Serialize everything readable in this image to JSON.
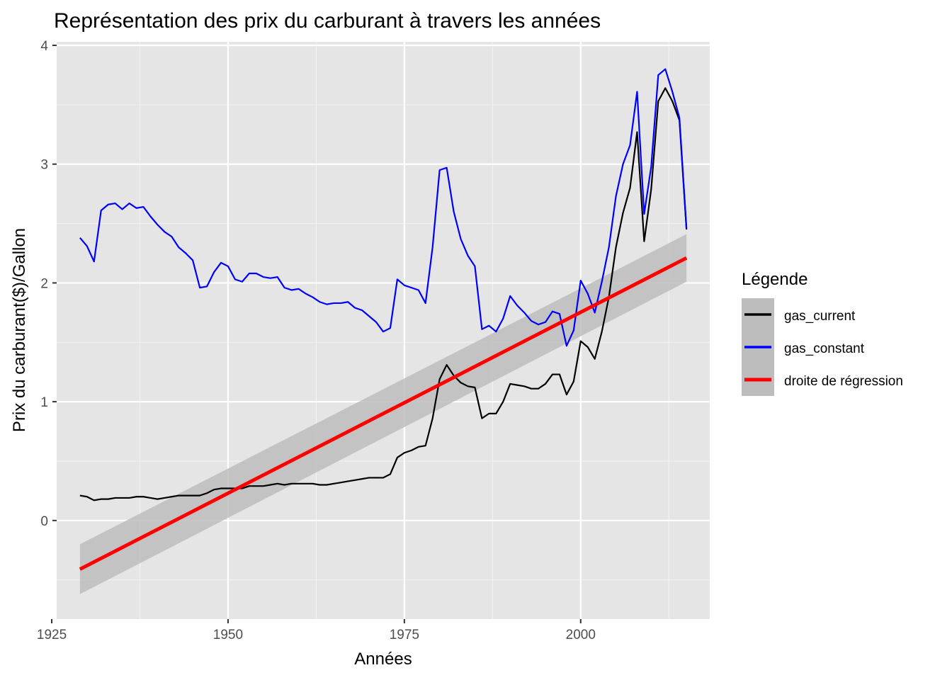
{
  "chart_data": {
    "type": "line",
    "title": "Représentation des prix du carburant à travers les années",
    "xlabel": "Années",
    "ylabel": "Prix du carburant($)/Gallon",
    "xlim": [
      1925.7,
      2018.3
    ],
    "ylim": [
      -0.83,
      4.03
    ],
    "x_ticks": [
      1925,
      1950,
      1975,
      2000
    ],
    "y_ticks": [
      0,
      1,
      2,
      3,
      4
    ],
    "grid": true,
    "legend": {
      "title": "Légende",
      "position": "right",
      "entries": [
        {
          "label": "gas_current",
          "color": "#000000"
        },
        {
          "label": "gas_constant",
          "color": "#0000ff"
        },
        {
          "label": "droite de régression",
          "color": "#ff0000"
        }
      ]
    },
    "years": [
      1929,
      1930,
      1931,
      1932,
      1933,
      1934,
      1935,
      1936,
      1937,
      1938,
      1939,
      1940,
      1941,
      1942,
      1943,
      1944,
      1945,
      1946,
      1947,
      1948,
      1949,
      1950,
      1951,
      1952,
      1953,
      1954,
      1955,
      1956,
      1957,
      1958,
      1959,
      1960,
      1961,
      1962,
      1963,
      1964,
      1965,
      1966,
      1967,
      1968,
      1969,
      1970,
      1971,
      1972,
      1973,
      1974,
      1975,
      1976,
      1977,
      1978,
      1979,
      1980,
      1981,
      1982,
      1983,
      1984,
      1985,
      1986,
      1987,
      1988,
      1989,
      1990,
      1991,
      1992,
      1993,
      1994,
      1995,
      1996,
      1997,
      1998,
      1999,
      2000,
      2001,
      2002,
      2003,
      2004,
      2005,
      2006,
      2007,
      2008,
      2009,
      2010,
      2011,
      2012,
      2013,
      2014,
      2015
    ],
    "series": [
      {
        "name": "gas_current",
        "color": "#000000",
        "values": [
          0.21,
          0.2,
          0.17,
          0.18,
          0.18,
          0.19,
          0.19,
          0.19,
          0.2,
          0.2,
          0.19,
          0.18,
          0.19,
          0.2,
          0.21,
          0.21,
          0.21,
          0.21,
          0.23,
          0.26,
          0.27,
          0.27,
          0.27,
          0.27,
          0.29,
          0.29,
          0.29,
          0.3,
          0.31,
          0.3,
          0.31,
          0.31,
          0.31,
          0.31,
          0.3,
          0.3,
          0.31,
          0.32,
          0.33,
          0.34,
          0.35,
          0.36,
          0.36,
          0.36,
          0.39,
          0.53,
          0.57,
          0.59,
          0.62,
          0.63,
          0.86,
          1.19,
          1.31,
          1.22,
          1.16,
          1.13,
          1.12,
          0.86,
          0.9,
          0.9,
          1.0,
          1.15,
          1.14,
          1.13,
          1.11,
          1.11,
          1.15,
          1.23,
          1.23,
          1.06,
          1.17,
          1.51,
          1.46,
          1.36,
          1.59,
          1.88,
          2.3,
          2.59,
          2.8,
          3.27,
          2.35,
          2.79,
          3.53,
          3.64,
          3.53,
          3.37,
          2.45
        ]
      },
      {
        "name": "gas_constant",
        "color": "#0000ff",
        "values": [
          2.38,
          2.31,
          2.18,
          2.61,
          2.66,
          2.67,
          2.62,
          2.67,
          2.63,
          2.64,
          2.56,
          2.49,
          2.43,
          2.39,
          2.3,
          2.25,
          2.19,
          1.96,
          1.97,
          2.09,
          2.17,
          2.14,
          2.03,
          2.01,
          2.08,
          2.08,
          2.05,
          2.04,
          2.05,
          1.96,
          1.94,
          1.95,
          1.91,
          1.88,
          1.84,
          1.82,
          1.83,
          1.83,
          1.84,
          1.79,
          1.77,
          1.72,
          1.67,
          1.59,
          1.62,
          2.03,
          1.98,
          1.96,
          1.94,
          1.83,
          2.3,
          2.95,
          2.97,
          2.6,
          2.37,
          2.23,
          2.14,
          1.61,
          1.64,
          1.59,
          1.7,
          1.89,
          1.81,
          1.75,
          1.68,
          1.65,
          1.67,
          1.76,
          1.74,
          1.47,
          1.6,
          2.02,
          1.91,
          1.75,
          2.01,
          2.3,
          2.73,
          3.0,
          3.16,
          3.61,
          2.58,
          2.98,
          3.75,
          3.8,
          3.61,
          3.39,
          2.46
        ]
      }
    ],
    "regression": {
      "name": "droite de régression",
      "color": "#ff0000",
      "x": [
        1929,
        2015
      ],
      "y": [
        -0.41,
        2.21
      ],
      "ci_lower": [
        -0.62,
        2.01
      ],
      "ci_upper": [
        -0.2,
        2.41
      ],
      "band_color": "#bdbdbd"
    }
  }
}
